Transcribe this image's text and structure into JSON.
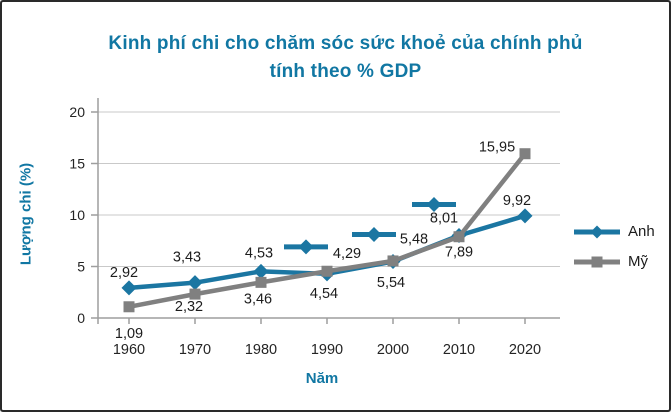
{
  "window": {
    "background": "#ffffff",
    "frame_border_color": "#2a2a2a"
  },
  "chart_data": {
    "type": "line",
    "title_line1": "Kinh phí chi cho chăm sóc sức khoẻ của chính phủ",
    "title_line2": "tính theo % GDP",
    "title_color": "#1177a3",
    "xlabel": "Năm",
    "ylabel": "Lượng chi (%)",
    "categories": [
      "1960",
      "1970",
      "1980",
      "1990",
      "2000",
      "2010",
      "2020"
    ],
    "y_ticks": [
      0,
      5,
      10,
      15,
      20
    ],
    "ylim": [
      0,
      20
    ],
    "grid": "horizontal-only",
    "gridline_color": "#c9c9c9",
    "axis_color": "#9e9e9e",
    "tick_label_color": "#242424",
    "data_label_color": "#1c1c1c",
    "decimal_separator": ",",
    "legend_position": "right-middle",
    "series": [
      {
        "name": "Anh",
        "color": "#1b76a2",
        "marker": "diamond",
        "values": [
          2.92,
          3.43,
          4.53,
          4.29,
          5.48,
          8.01,
          9.92
        ],
        "labels": [
          "2,92",
          "3,43",
          "4,53",
          "4,29",
          "5,48",
          "8,01",
          "9,92"
        ],
        "label_offsets": [
          [
            -5,
            -16
          ],
          [
            -8,
            -26
          ],
          [
            -2,
            -19
          ],
          [
            20,
            -21
          ],
          [
            21,
            -23
          ],
          [
            -15,
            -18
          ],
          [
            -8,
            -16
          ]
        ],
        "label_legend_keys": [
          null,
          null,
          null,
          [
            -21,
            -27
          ],
          [
            -19,
            -27
          ],
          [
            -25,
            -31
          ],
          null
        ]
      },
      {
        "name": "Mỹ",
        "color": "#808080",
        "marker": "square",
        "values": [
          1.09,
          2.32,
          3.46,
          4.54,
          5.54,
          7.89,
          15.95
        ],
        "labels": [
          "1,09",
          "2,32",
          "3,46",
          "4,54",
          "5,54",
          "7,89",
          "15,95"
        ],
        "label_offsets": [
          [
            0,
            26
          ],
          [
            -6,
            12
          ],
          [
            -3,
            16
          ],
          [
            -3,
            22
          ],
          [
            -2,
            21
          ],
          [
            0,
            15
          ],
          [
            -28,
            -7
          ]
        ],
        "label_legend_keys": [
          null,
          null,
          null,
          null,
          null,
          null,
          null
        ]
      }
    ]
  }
}
